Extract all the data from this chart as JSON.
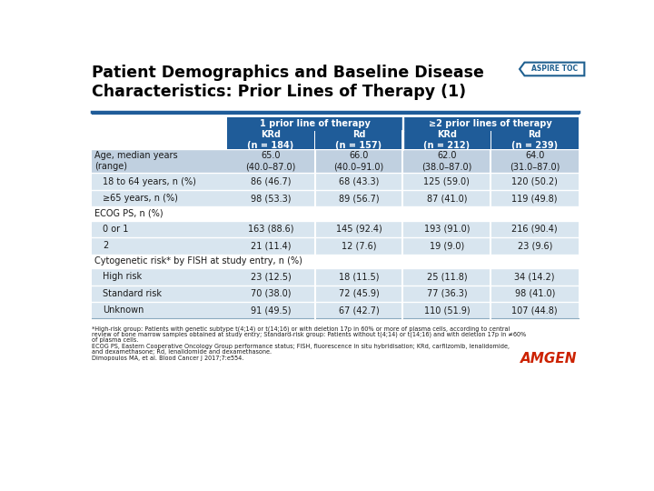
{
  "title_line1": "Patient Demographics and Baseline Disease",
  "title_line2": "Characteristics: Prior Lines of Therapy (1)",
  "aspire_toc": "ASPIRE TOC",
  "header1": "1 prior line of therapy",
  "header2": "≥2 prior lines of therapy",
  "col_headers": [
    "KRd\n(n = 184)",
    "Rd\n(n = 157)",
    "KRd\n(n = 212)",
    "Rd\n(n = 239)"
  ],
  "rows": [
    {
      "label": "Age, median years\n(range)",
      "values": [
        "65.0\n(40.0–87.0)",
        "66.0\n(40.0–91.0)",
        "62.0\n(38.0–87.0)",
        "64.0\n(31.0–87.0)"
      ],
      "indent": 0,
      "section_header": false,
      "shaded": true
    },
    {
      "label": "18 to 64 years, n (%)",
      "values": [
        "86 (46.7)",
        "68 (43.3)",
        "125 (59.0)",
        "120 (50.2)"
      ],
      "indent": 1,
      "section_header": false,
      "shaded": false
    },
    {
      "label": "≥65 years, n (%)",
      "values": [
        "98 (53.3)",
        "89 (56.7)",
        "87 (41.0)",
        "119 (49.8)"
      ],
      "indent": 1,
      "section_header": false,
      "shaded": false
    },
    {
      "label": "ECOG PS, n (%)",
      "values": [
        "",
        "",
        "",
        ""
      ],
      "indent": 0,
      "section_header": true,
      "shaded": false
    },
    {
      "label": "0 or 1",
      "values": [
        "163 (88.6)",
        "145 (92.4)",
        "193 (91.0)",
        "216 (90.4)"
      ],
      "indent": 1,
      "section_header": false,
      "shaded": false
    },
    {
      "label": "2",
      "values": [
        "21 (11.4)",
        "12 (7.6)",
        "19 (9.0)",
        "23 (9.6)"
      ],
      "indent": 1,
      "section_header": false,
      "shaded": false
    },
    {
      "label": "Cytogenetic risk* by FISH at study entry, n (%)",
      "values": [
        "",
        "",
        "",
        ""
      ],
      "indent": 0,
      "section_header": true,
      "shaded": false
    },
    {
      "label": "High risk",
      "values": [
        "23 (12.5)",
        "18 (11.5)",
        "25 (11.8)",
        "34 (14.2)"
      ],
      "indent": 1,
      "section_header": false,
      "shaded": false
    },
    {
      "label": "Standard risk",
      "values": [
        "70 (38.0)",
        "72 (45.9)",
        "77 (36.3)",
        "98 (41.0)"
      ],
      "indent": 1,
      "section_header": false,
      "shaded": false
    },
    {
      "label": "Unknown",
      "values": [
        "91 (49.5)",
        "67 (42.7)",
        "110 (51.9)",
        "107 (44.8)"
      ],
      "indent": 1,
      "section_header": false,
      "shaded": false
    }
  ],
  "footnotes": [
    "*High-risk group: Patients with genetic subtype t(4;14) or t(14;16) or with deletion 17p in 60% or more of plasma cells, according to central",
    "review of bone marrow samples obtained at study entry; Standard-risk group: Patients without t(4;14) or t(14;16) and with deletion 17p in ≠60%",
    "of plasma cells.",
    "ECOG PS, Eastern Cooperative Oncology Group performance status; FISH, fluorescence in situ hybridisation; KRd, carfilzomib, lenalidomide,",
    "and dexamethasone; Rd, lenalidomide and dexamethasone.",
    "Dimopoulos MA, et al. Blood Cancer J 2017;7:e554."
  ],
  "header_blue": "#1F5C99",
  "shaded_row_color": "#B8CCE0",
  "alt_row_color": "#D9E5F0",
  "section_header_color": "#E8EEF5",
  "white": "#FFFFFF",
  "text_dark": "#1A1A1A",
  "title_color": "#000000",
  "aspire_border_color": "#1F6090",
  "aspire_text_color": "#1F6090",
  "amgen_color": "#CC2200",
  "line_color": "#1F5C99",
  "table_border_color": "#8AAABF"
}
